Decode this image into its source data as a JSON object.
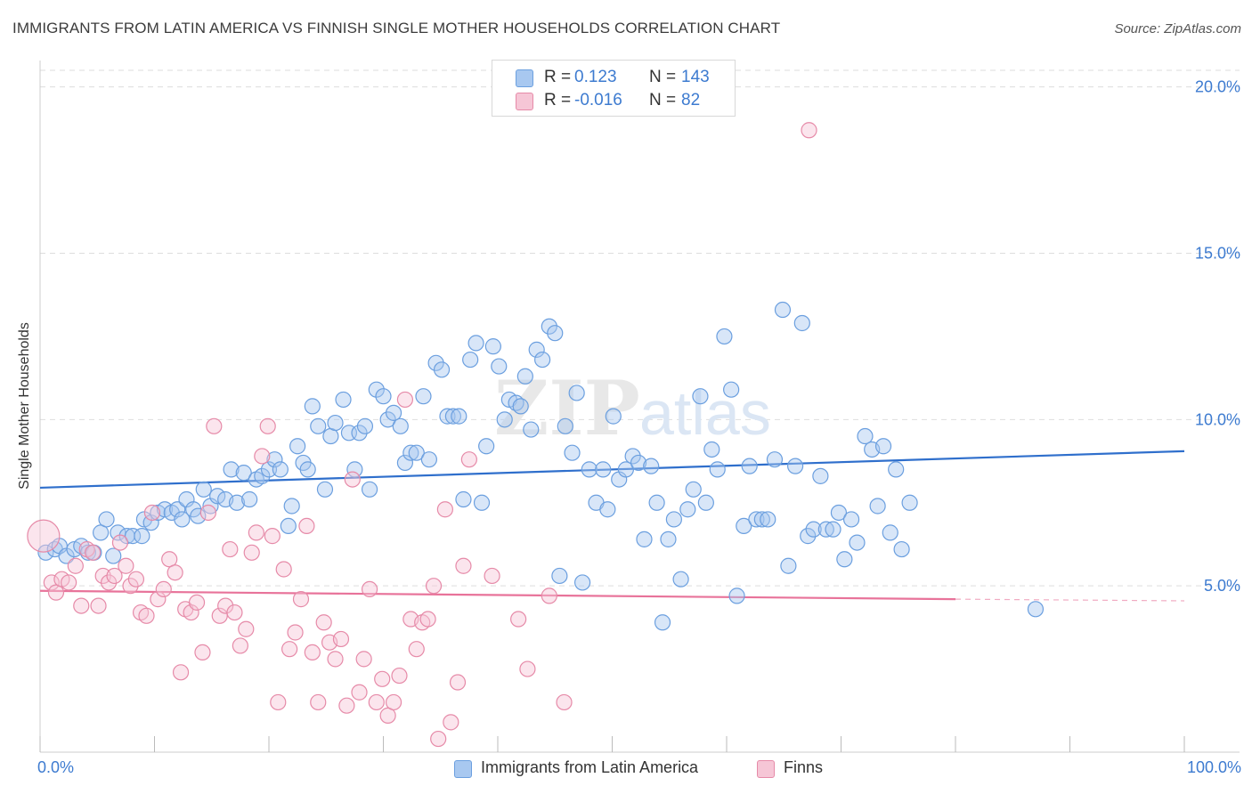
{
  "title": "IMMIGRANTS FROM LATIN AMERICA VS FINNISH SINGLE MOTHER HOUSEHOLDS CORRELATION CHART",
  "source": "Source: ZipAtlas.com",
  "watermark": {
    "zip": "ZIP",
    "atlas": "atlas"
  },
  "legend": {
    "rows": [
      {
        "r_label": "R =",
        "r_value": "0.123",
        "n_label": "N =",
        "n_value": "143",
        "color": "#a8c8f0"
      },
      {
        "r_label": "R =",
        "r_value": "-0.016",
        "n_label": "N =",
        "n_value": "82",
        "color": "#f6b8cc"
      }
    ]
  },
  "colors": {
    "blue_fill": "#a8c8f0",
    "blue_stroke": "#6b9fdf",
    "blue_line": "#2f6fcc",
    "pink_fill": "#f6c6d6",
    "pink_stroke": "#e68aa8",
    "pink_line": "#e8739a",
    "grid": "#dddddd",
    "axis_text": "#3d7bd0"
  },
  "chart_data": {
    "type": "scatter",
    "title": "IMMIGRANTS FROM LATIN AMERICA VS FINNISH SINGLE MOTHER HOUSEHOLDS CORRELATION CHART",
    "xlabel": "",
    "ylabel": "Single Mother Households",
    "xlim": [
      0,
      100
    ],
    "ylim": [
      0,
      20.5
    ],
    "x_tick_labels": [
      "0.0%",
      "100.0%"
    ],
    "y_ticks": [
      5,
      10,
      15,
      20
    ],
    "y_tick_labels": [
      "5.0%",
      "10.0%",
      "15.0%",
      "20.0%"
    ],
    "grid": true,
    "legend_position": "top-center",
    "series": [
      {
        "name": "Immigrants from Latin America",
        "color": "#a8c8f0",
        "R": 0.123,
        "N": 143,
        "trend": {
          "x": [
            0,
            100
          ],
          "y": [
            7.95,
            9.05
          ]
        },
        "points": [
          [
            0.5,
            6.0
          ],
          [
            1.3,
            6.1
          ],
          [
            1.7,
            6.2
          ],
          [
            2.3,
            5.9
          ],
          [
            3.0,
            6.1
          ],
          [
            3.6,
            6.2
          ],
          [
            4.2,
            6.0
          ],
          [
            4.7,
            6.0
          ],
          [
            5.3,
            6.6
          ],
          [
            5.8,
            7.0
          ],
          [
            6.4,
            5.9
          ],
          [
            6.8,
            6.6
          ],
          [
            7.6,
            6.5
          ],
          [
            8.1,
            6.5
          ],
          [
            8.9,
            6.5
          ],
          [
            9.1,
            7.0
          ],
          [
            9.7,
            6.9
          ],
          [
            10.3,
            7.2
          ],
          [
            10.9,
            7.3
          ],
          [
            11.5,
            7.2
          ],
          [
            12.0,
            7.3
          ],
          [
            12.4,
            7.0
          ],
          [
            12.8,
            7.6
          ],
          [
            13.4,
            7.3
          ],
          [
            13.8,
            7.1
          ],
          [
            14.3,
            7.9
          ],
          [
            14.9,
            7.4
          ],
          [
            15.5,
            7.7
          ],
          [
            16.2,
            7.6
          ],
          [
            16.7,
            8.5
          ],
          [
            17.2,
            7.5
          ],
          [
            17.8,
            8.4
          ],
          [
            18.3,
            7.6
          ],
          [
            18.9,
            8.2
          ],
          [
            19.4,
            8.3
          ],
          [
            20.0,
            8.5
          ],
          [
            20.5,
            8.8
          ],
          [
            21.0,
            8.5
          ],
          [
            21.7,
            6.8
          ],
          [
            22.0,
            7.4
          ],
          [
            22.5,
            9.2
          ],
          [
            23.0,
            8.7
          ],
          [
            23.4,
            8.5
          ],
          [
            23.8,
            10.4
          ],
          [
            24.3,
            9.8
          ],
          [
            24.9,
            7.9
          ],
          [
            25.4,
            9.5
          ],
          [
            25.8,
            9.9
          ],
          [
            26.5,
            10.6
          ],
          [
            27.0,
            9.6
          ],
          [
            27.5,
            8.5
          ],
          [
            27.9,
            9.6
          ],
          [
            28.4,
            9.8
          ],
          [
            28.8,
            7.9
          ],
          [
            29.4,
            10.9
          ],
          [
            30.0,
            10.7
          ],
          [
            30.4,
            10.0
          ],
          [
            30.9,
            10.2
          ],
          [
            31.5,
            9.8
          ],
          [
            31.9,
            8.7
          ],
          [
            32.4,
            9.0
          ],
          [
            32.9,
            9.0
          ],
          [
            33.5,
            10.7
          ],
          [
            34.0,
            8.8
          ],
          [
            34.6,
            11.7
          ],
          [
            35.1,
            11.5
          ],
          [
            35.6,
            10.1
          ],
          [
            36.1,
            10.1
          ],
          [
            36.6,
            10.1
          ],
          [
            37.0,
            7.6
          ],
          [
            37.6,
            11.8
          ],
          [
            38.1,
            12.3
          ],
          [
            38.6,
            7.5
          ],
          [
            39.0,
            9.2
          ],
          [
            39.6,
            12.2
          ],
          [
            40.1,
            11.6
          ],
          [
            40.6,
            10.0
          ],
          [
            41.0,
            10.6
          ],
          [
            41.6,
            10.5
          ],
          [
            42.0,
            10.4
          ],
          [
            42.4,
            11.3
          ],
          [
            42.9,
            9.7
          ],
          [
            43.4,
            12.1
          ],
          [
            43.9,
            11.8
          ],
          [
            44.5,
            12.8
          ],
          [
            45.0,
            12.6
          ],
          [
            45.4,
            5.3
          ],
          [
            45.9,
            9.8
          ],
          [
            46.5,
            9.0
          ],
          [
            46.9,
            10.8
          ],
          [
            47.4,
            5.1
          ],
          [
            48.0,
            8.5
          ],
          [
            48.6,
            7.5
          ],
          [
            49.2,
            8.5
          ],
          [
            49.6,
            7.3
          ],
          [
            50.1,
            10.1
          ],
          [
            50.6,
            8.2
          ],
          [
            51.2,
            8.5
          ],
          [
            51.8,
            8.9
          ],
          [
            52.3,
            8.7
          ],
          [
            52.8,
            6.4
          ],
          [
            53.4,
            8.6
          ],
          [
            53.9,
            7.5
          ],
          [
            54.4,
            3.9
          ],
          [
            54.9,
            6.4
          ],
          [
            55.4,
            7.0
          ],
          [
            56.0,
            5.2
          ],
          [
            56.6,
            7.3
          ],
          [
            57.1,
            7.9
          ],
          [
            57.7,
            10.7
          ],
          [
            58.2,
            7.5
          ],
          [
            58.7,
            9.1
          ],
          [
            59.2,
            8.5
          ],
          [
            59.8,
            12.5
          ],
          [
            60.4,
            10.9
          ],
          [
            60.9,
            4.7
          ],
          [
            61.5,
            6.8
          ],
          [
            62.0,
            8.6
          ],
          [
            62.6,
            7.0
          ],
          [
            63.1,
            7.0
          ],
          [
            63.6,
            7.0
          ],
          [
            64.2,
            8.8
          ],
          [
            64.9,
            13.3
          ],
          [
            65.4,
            5.6
          ],
          [
            66.0,
            8.6
          ],
          [
            66.6,
            12.9
          ],
          [
            67.1,
            6.5
          ],
          [
            67.6,
            6.7
          ],
          [
            68.2,
            8.3
          ],
          [
            68.7,
            6.7
          ],
          [
            69.3,
            6.7
          ],
          [
            69.8,
            7.2
          ],
          [
            70.3,
            5.8
          ],
          [
            70.9,
            7.0
          ],
          [
            71.4,
            6.3
          ],
          [
            72.1,
            9.5
          ],
          [
            72.7,
            9.1
          ],
          [
            73.2,
            7.4
          ],
          [
            73.7,
            9.2
          ],
          [
            74.3,
            6.6
          ],
          [
            74.8,
            8.5
          ],
          [
            75.3,
            6.1
          ],
          [
            76.0,
            7.5
          ],
          [
            87.0,
            4.3
          ]
        ]
      },
      {
        "name": "Finns",
        "color": "#f6b8cc",
        "R": -0.016,
        "N": 82,
        "trend_solid": {
          "x": [
            0,
            80
          ],
          "y": [
            4.85,
            4.6
          ]
        },
        "trend_dashed": {
          "x": [
            80,
            100
          ],
          "y": [
            4.6,
            4.55
          ]
        },
        "points": [
          [
            0.3,
            6.5
          ],
          [
            1.0,
            5.1
          ],
          [
            1.4,
            4.8
          ],
          [
            1.9,
            5.2
          ],
          [
            2.5,
            5.1
          ],
          [
            3.1,
            5.6
          ],
          [
            3.6,
            4.4
          ],
          [
            4.1,
            6.1
          ],
          [
            4.6,
            6.0
          ],
          [
            5.1,
            4.4
          ],
          [
            5.5,
            5.3
          ],
          [
            6.0,
            5.1
          ],
          [
            6.5,
            5.3
          ],
          [
            7.0,
            6.3
          ],
          [
            7.5,
            5.6
          ],
          [
            7.9,
            5.0
          ],
          [
            8.4,
            5.2
          ],
          [
            8.8,
            4.2
          ],
          [
            9.3,
            4.1
          ],
          [
            9.8,
            7.2
          ],
          [
            10.3,
            4.6
          ],
          [
            10.8,
            4.9
          ],
          [
            11.3,
            5.8
          ],
          [
            11.8,
            5.4
          ],
          [
            12.3,
            2.4
          ],
          [
            12.7,
            4.3
          ],
          [
            13.2,
            4.2
          ],
          [
            13.7,
            4.5
          ],
          [
            14.2,
            3.0
          ],
          [
            14.7,
            7.2
          ],
          [
            15.2,
            9.8
          ],
          [
            15.7,
            4.1
          ],
          [
            16.2,
            4.4
          ],
          [
            16.6,
            6.1
          ],
          [
            17.0,
            4.2
          ],
          [
            17.5,
            3.2
          ],
          [
            18.0,
            3.7
          ],
          [
            18.5,
            6.0
          ],
          [
            18.9,
            6.6
          ],
          [
            19.4,
            8.9
          ],
          [
            19.9,
            9.8
          ],
          [
            20.3,
            6.5
          ],
          [
            20.8,
            1.5
          ],
          [
            21.3,
            5.5
          ],
          [
            21.8,
            3.1
          ],
          [
            22.3,
            3.6
          ],
          [
            22.8,
            4.6
          ],
          [
            23.3,
            6.8
          ],
          [
            23.8,
            3.0
          ],
          [
            24.3,
            1.5
          ],
          [
            24.8,
            3.9
          ],
          [
            25.3,
            3.3
          ],
          [
            25.8,
            2.8
          ],
          [
            26.3,
            3.4
          ],
          [
            26.8,
            1.4
          ],
          [
            27.3,
            8.2
          ],
          [
            27.9,
            1.8
          ],
          [
            28.3,
            2.8
          ],
          [
            28.8,
            4.9
          ],
          [
            29.4,
            1.5
          ],
          [
            29.9,
            2.2
          ],
          [
            30.4,
            1.1
          ],
          [
            30.9,
            1.5
          ],
          [
            31.4,
            2.3
          ],
          [
            31.9,
            10.6
          ],
          [
            32.4,
            4.0
          ],
          [
            32.9,
            3.1
          ],
          [
            33.4,
            3.9
          ],
          [
            33.9,
            4.0
          ],
          [
            34.4,
            5.0
          ],
          [
            34.8,
            0.4
          ],
          [
            35.4,
            7.3
          ],
          [
            35.9,
            0.9
          ],
          [
            36.5,
            2.1
          ],
          [
            37.0,
            5.6
          ],
          [
            37.5,
            8.8
          ],
          [
            39.5,
            5.3
          ],
          [
            41.8,
            4.0
          ],
          [
            42.6,
            2.5
          ],
          [
            44.5,
            4.7
          ],
          [
            45.8,
            1.5
          ],
          [
            67.2,
            18.7
          ]
        ]
      }
    ]
  },
  "bottom_legend": {
    "items": [
      {
        "label": "Immigrants from Latin America",
        "color": "#a8c8f0"
      },
      {
        "label": "Finns",
        "color": "#f6c6d6"
      }
    ]
  }
}
